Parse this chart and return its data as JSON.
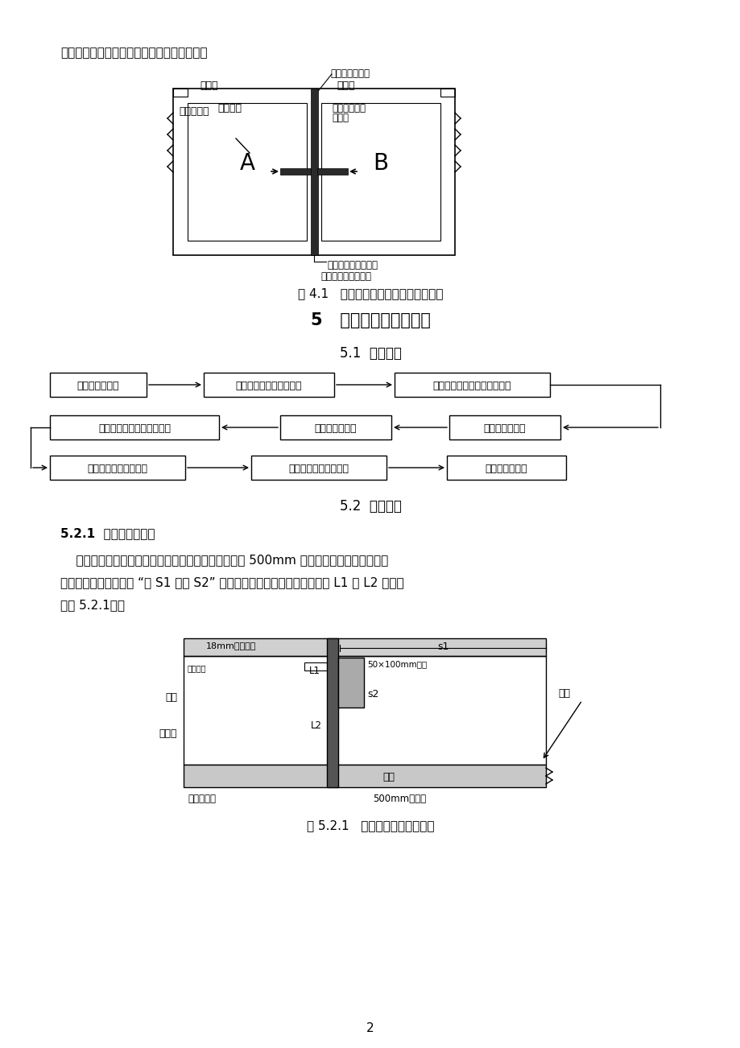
{
  "bg_color": "#ffffff",
  "page_width": 9.2,
  "page_height": 13.02,
  "top_text": "强抗变形能力，从而提高变形后的防水能力。",
  "fig41_caption": "图 4.1   钒边氯丁橡胶止水带设置大样图",
  "sec5_title": "5   工艺流程及操作要点",
  "sec51_title": "5.1  工艺流程",
  "sec52_title": "5.2  操作要点",
  "sec521_title": "5.2.1  设计缝定位弹线",
  "para1": "    先在底板垫层上弹出每条变形缝中心线位置，并外移 500mm 作为施工控制线。施工中采",
  "para2": "用钓锤线来控制止水带 “上 S1 和下 S2” 两个距离，及相对止水带边的宽度 L1 与 L2 是相等",
  "para3": "（图 5.2.1）。",
  "fig521_caption": "图 5.2.1   底板变形缝控制大样图",
  "page_number": "2",
  "flow_row1_0": "设计缝定位弹线",
  "flow_row1_1": "半幅定位锂筋和模板安装",
  "flow_row1_2": "钒边氯丁橡胶止水带安装连接",
  "flow_row2_0": "粘贴变形缝聚苯乙烯泡沫板",
  "flow_row2_1": "拆除变形缝模板",
  "flow_row2_2": "浇筑半幅混凝土",
  "flow_row3_0": "浇筑另半幅区块混凝土",
  "flow_row3_1": "变形缝修缝及封膏嵌缝",
  "flow_row3_2": "变形缝施工结束",
  "label_xianshi": "先施工",
  "label_houshi": "后施工",
  "label_shuangsufeng": "双组聚硫密封膏",
  "label_shiti": "实体混凝土",
  "label_dingwei": "定位锂筋",
  "label_gangbian": "钒边氯丁橡胶",
  "label_zhishuidai": "止水带",
  "label_juben": "聚苯乙烯硬质泡沫板",
  "label_jiegoufeng": "结构变形缝或引发缝",
  "label_18mm": "18mm厚胶合板",
  "label_s1": "s1",
  "label_s2": "s2",
  "label_L1": "L1",
  "label_L2": "L2",
  "label_50x100": "50×100mm方木",
  "label_diban": "底板",
  "label_zhishui2": "止水带",
  "label_dingwei2": "定位锂筋",
  "label_zhuiceng": "垫层",
  "label_gudinggangjin": "固定用锂筋",
  "label_500mm": "500mm控制线",
  "label_xianzhui": "线锤"
}
